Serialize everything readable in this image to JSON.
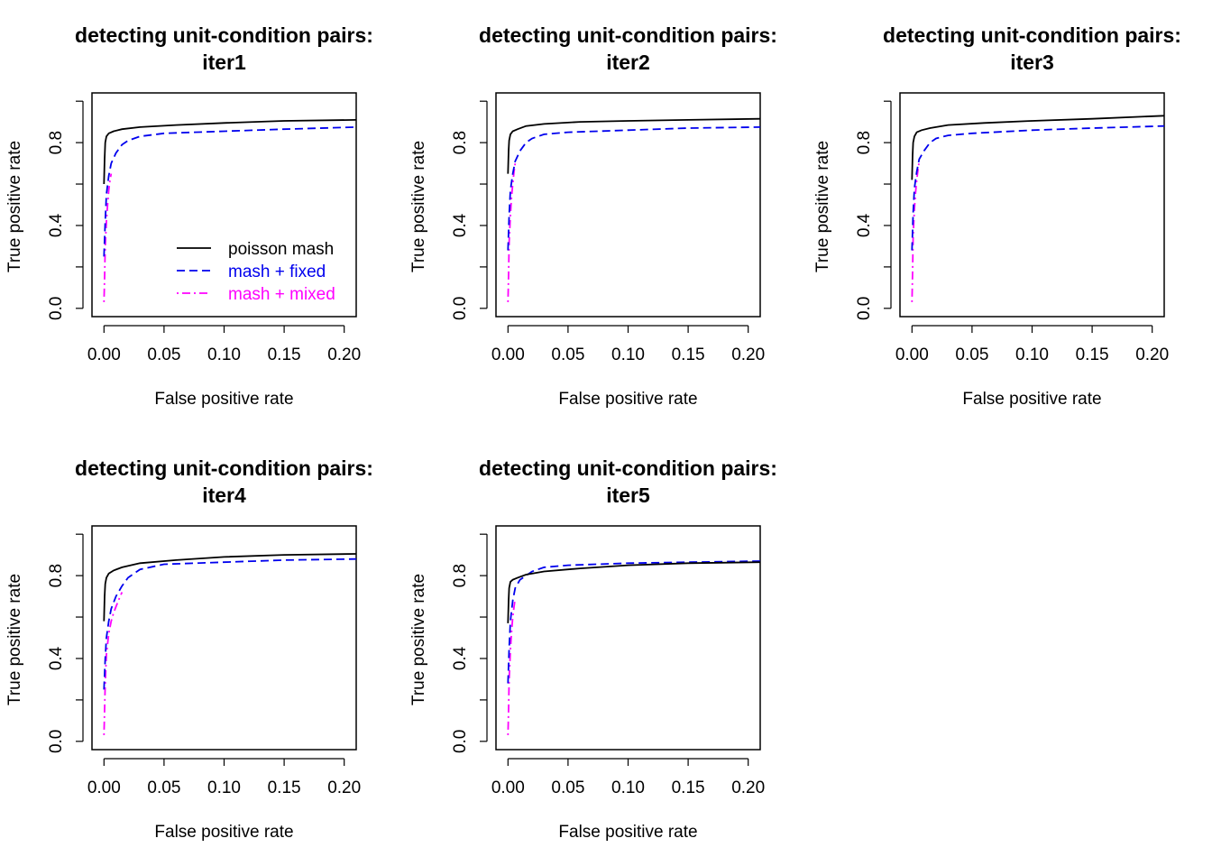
{
  "chart_data": [
    {
      "type": "line",
      "title_line1": "detecting unit-condition pairs:",
      "title_line2": "iter1",
      "xlabel": "False positive rate",
      "ylabel": "True positive rate",
      "xlim": [
        -0.01,
        0.21
      ],
      "ylim": [
        -0.04,
        1.04
      ],
      "xticks": [
        "0.00",
        "0.05",
        "0.10",
        "0.15",
        "0.20"
      ],
      "yticks": [
        "0.0",
        "0.4",
        "0.8"
      ],
      "show_legend": true,
      "series": [
        {
          "name": "poisson mash",
          "color": "#000000",
          "dash": "solid",
          "x": [
            0.0,
            0.0005,
            0.001,
            0.002,
            0.004,
            0.008,
            0.015,
            0.03,
            0.06,
            0.1,
            0.15,
            0.21
          ],
          "y": [
            0.6,
            0.72,
            0.8,
            0.83,
            0.845,
            0.855,
            0.865,
            0.875,
            0.885,
            0.895,
            0.905,
            0.91
          ]
        },
        {
          "name": "mash + fixed",
          "color": "#0000ee",
          "dash": "dashed",
          "x": [
            0.0,
            0.001,
            0.002,
            0.004,
            0.006,
            0.01,
            0.015,
            0.02,
            0.03,
            0.05,
            0.1,
            0.15,
            0.21
          ],
          "y": [
            0.25,
            0.42,
            0.55,
            0.64,
            0.7,
            0.75,
            0.79,
            0.81,
            0.83,
            0.845,
            0.855,
            0.865,
            0.875
          ]
        },
        {
          "name": "mash + mixed",
          "color": "#ff00ff",
          "dash": "dotdash",
          "x": [
            0.0,
            0.0005,
            0.001,
            0.002,
            0.003,
            0.004,
            0.005,
            0.006
          ],
          "y": [
            0.03,
            0.15,
            0.3,
            0.42,
            0.5,
            0.57,
            0.62,
            0.65
          ]
        }
      ]
    },
    {
      "type": "line",
      "title_line1": "detecting unit-condition pairs:",
      "title_line2": "iter2",
      "xlabel": "False positive rate",
      "ylabel": "True positive rate",
      "xlim": [
        -0.01,
        0.21
      ],
      "ylim": [
        -0.04,
        1.04
      ],
      "xticks": [
        "0.00",
        "0.05",
        "0.10",
        "0.15",
        "0.20"
      ],
      "yticks": [
        "0.0",
        "0.4",
        "0.8"
      ],
      "show_legend": false,
      "series": [
        {
          "name": "poisson mash",
          "color": "#000000",
          "dash": "solid",
          "x": [
            0.0,
            0.0005,
            0.001,
            0.002,
            0.004,
            0.008,
            0.015,
            0.03,
            0.06,
            0.1,
            0.15,
            0.21
          ],
          "y": [
            0.65,
            0.76,
            0.81,
            0.84,
            0.855,
            0.865,
            0.88,
            0.89,
            0.9,
            0.905,
            0.91,
            0.915
          ]
        },
        {
          "name": "mash + fixed",
          "color": "#0000ee",
          "dash": "dashed",
          "x": [
            0.0,
            0.001,
            0.002,
            0.004,
            0.006,
            0.01,
            0.015,
            0.02,
            0.03,
            0.05,
            0.1,
            0.15,
            0.21
          ],
          "y": [
            0.28,
            0.45,
            0.57,
            0.65,
            0.71,
            0.76,
            0.8,
            0.82,
            0.84,
            0.85,
            0.86,
            0.87,
            0.875
          ]
        },
        {
          "name": "mash + mixed",
          "color": "#ff00ff",
          "dash": "dotdash",
          "x": [
            0.0,
            0.0005,
            0.001,
            0.002,
            0.003,
            0.004,
            0.005,
            0.006
          ],
          "y": [
            0.03,
            0.17,
            0.32,
            0.45,
            0.54,
            0.6,
            0.66,
            0.7
          ]
        }
      ]
    },
    {
      "type": "line",
      "title_line1": "detecting unit-condition pairs:",
      "title_line2": "iter3",
      "xlabel": "False positive rate",
      "ylabel": "True positive rate",
      "xlim": [
        -0.01,
        0.21
      ],
      "ylim": [
        -0.04,
        1.04
      ],
      "xticks": [
        "0.00",
        "0.05",
        "0.10",
        "0.15",
        "0.20"
      ],
      "yticks": [
        "0.0",
        "0.4",
        "0.8"
      ],
      "show_legend": false,
      "series": [
        {
          "name": "poisson mash",
          "color": "#000000",
          "dash": "solid",
          "x": [
            0.0,
            0.0005,
            0.001,
            0.002,
            0.004,
            0.008,
            0.015,
            0.03,
            0.06,
            0.1,
            0.15,
            0.21
          ],
          "y": [
            0.62,
            0.74,
            0.8,
            0.83,
            0.85,
            0.86,
            0.87,
            0.885,
            0.895,
            0.905,
            0.915,
            0.93
          ]
        },
        {
          "name": "mash + fixed",
          "color": "#0000ee",
          "dash": "dashed",
          "x": [
            0.0,
            0.001,
            0.002,
            0.004,
            0.006,
            0.01,
            0.015,
            0.02,
            0.03,
            0.05,
            0.1,
            0.15,
            0.21
          ],
          "y": [
            0.28,
            0.46,
            0.58,
            0.66,
            0.72,
            0.76,
            0.8,
            0.82,
            0.835,
            0.845,
            0.86,
            0.87,
            0.88
          ]
        },
        {
          "name": "mash + mixed",
          "color": "#ff00ff",
          "dash": "dotdash",
          "x": [
            0.0,
            0.0005,
            0.001,
            0.002,
            0.003,
            0.004,
            0.005,
            0.006
          ],
          "y": [
            0.03,
            0.18,
            0.35,
            0.48,
            0.56,
            0.62,
            0.67,
            0.71
          ]
        }
      ]
    },
    {
      "type": "line",
      "title_line1": "detecting unit-condition pairs:",
      "title_line2": "iter4",
      "xlabel": "False positive rate",
      "ylabel": "True positive rate",
      "xlim": [
        -0.01,
        0.21
      ],
      "ylim": [
        -0.04,
        1.04
      ],
      "xticks": [
        "0.00",
        "0.05",
        "0.10",
        "0.15",
        "0.20"
      ],
      "yticks": [
        "0.0",
        "0.4",
        "0.8"
      ],
      "show_legend": false,
      "series": [
        {
          "name": "poisson mash",
          "color": "#000000",
          "dash": "solid",
          "x": [
            0.0,
            0.0005,
            0.001,
            0.002,
            0.004,
            0.008,
            0.015,
            0.03,
            0.06,
            0.1,
            0.15,
            0.21
          ],
          "y": [
            0.58,
            0.7,
            0.76,
            0.79,
            0.81,
            0.825,
            0.84,
            0.86,
            0.875,
            0.89,
            0.9,
            0.905
          ]
        },
        {
          "name": "mash + fixed",
          "color": "#0000ee",
          "dash": "dashed",
          "x": [
            0.0,
            0.001,
            0.002,
            0.004,
            0.006,
            0.01,
            0.015,
            0.02,
            0.03,
            0.05,
            0.1,
            0.15,
            0.21
          ],
          "y": [
            0.25,
            0.4,
            0.5,
            0.58,
            0.64,
            0.7,
            0.75,
            0.79,
            0.83,
            0.855,
            0.865,
            0.875,
            0.88
          ]
        },
        {
          "name": "mash + mixed",
          "color": "#ff00ff",
          "dash": "dotdash",
          "x": [
            0.0,
            0.001,
            0.002,
            0.004,
            0.006,
            0.008,
            0.01,
            0.012,
            0.015
          ],
          "y": [
            0.03,
            0.28,
            0.42,
            0.52,
            0.58,
            0.62,
            0.65,
            0.68,
            0.72
          ]
        }
      ]
    },
    {
      "type": "line",
      "title_line1": "detecting unit-condition pairs:",
      "title_line2": "iter5",
      "xlabel": "False positive rate",
      "ylabel": "True positive rate",
      "xlim": [
        -0.01,
        0.21
      ],
      "ylim": [
        -0.04,
        1.04
      ],
      "xticks": [
        "0.00",
        "0.05",
        "0.10",
        "0.15",
        "0.20"
      ],
      "yticks": [
        "0.0",
        "0.4",
        "0.8"
      ],
      "show_legend": false,
      "series": [
        {
          "name": "poisson mash",
          "color": "#000000",
          "dash": "solid",
          "x": [
            0.0,
            0.0005,
            0.001,
            0.002,
            0.004,
            0.008,
            0.015,
            0.03,
            0.06,
            0.1,
            0.15,
            0.21
          ],
          "y": [
            0.57,
            0.68,
            0.74,
            0.77,
            0.78,
            0.79,
            0.805,
            0.82,
            0.835,
            0.85,
            0.86,
            0.865
          ]
        },
        {
          "name": "mash + fixed",
          "color": "#0000ee",
          "dash": "dashed",
          "x": [
            0.0,
            0.001,
            0.002,
            0.004,
            0.006,
            0.01,
            0.015,
            0.02,
            0.03,
            0.05,
            0.1,
            0.15,
            0.21
          ],
          "y": [
            0.28,
            0.45,
            0.58,
            0.68,
            0.74,
            0.78,
            0.8,
            0.82,
            0.84,
            0.85,
            0.86,
            0.865,
            0.87
          ]
        },
        {
          "name": "mash + mixed",
          "color": "#ff00ff",
          "dash": "dotdash",
          "x": [
            0.0,
            0.0005,
            0.001,
            0.002,
            0.003,
            0.004,
            0.005,
            0.006
          ],
          "y": [
            0.03,
            0.16,
            0.3,
            0.44,
            0.53,
            0.6,
            0.65,
            0.69
          ]
        }
      ]
    }
  ]
}
